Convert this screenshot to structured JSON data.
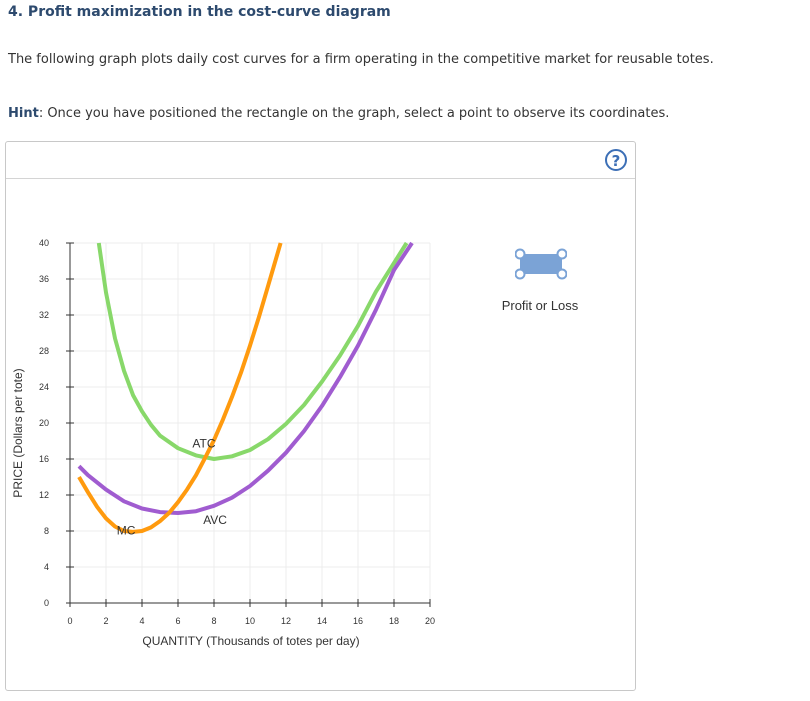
{
  "question": {
    "title": "4. Profit maximization in the cost-curve diagram",
    "description": "The following graph plots daily cost curves for a firm operating in the competitive market for reusable totes.",
    "hint_label": "Hint",
    "hint_text": ": Once you have positioned the rectangle on the graph, select a point to observe its coordinates."
  },
  "panel": {
    "help_label": "?"
  },
  "tool": {
    "label": "Profit or Loss",
    "color": "#7ba3d6"
  },
  "chart_data": {
    "type": "line",
    "xlabel": "QUANTITY (Thousands of totes per day)",
    "ylabel": "PRICE (Dollars per tote)",
    "xlim": [
      0,
      20
    ],
    "ylim": [
      0,
      40
    ],
    "xticks": [
      0,
      2,
      4,
      6,
      8,
      10,
      12,
      14,
      16,
      18,
      20
    ],
    "yticks": [
      0,
      4,
      8,
      12,
      16,
      20,
      24,
      28,
      32,
      36,
      40
    ],
    "grid": true,
    "series": [
      {
        "name": "ATC",
        "color": "#88d86a",
        "points": [
          [
            1.6,
            40
          ],
          [
            2,
            34.5
          ],
          [
            2.5,
            29.4
          ],
          [
            3,
            25.8
          ],
          [
            3.5,
            23.1
          ],
          [
            4,
            21.3
          ],
          [
            4.5,
            19.8
          ],
          [
            5,
            18.6
          ],
          [
            6,
            17.2
          ],
          [
            7,
            16.4
          ],
          [
            8,
            16.0
          ],
          [
            9,
            16.3
          ],
          [
            10,
            17.0
          ],
          [
            11,
            18.2
          ],
          [
            12,
            19.9
          ],
          [
            13,
            22.0
          ],
          [
            14,
            24.6
          ],
          [
            15,
            27.5
          ],
          [
            16,
            30.8
          ],
          [
            17,
            34.6
          ],
          [
            18.7,
            40
          ]
        ]
      },
      {
        "name": "AVC",
        "color": "#a05cd0",
        "points": [
          [
            0.5,
            15.2
          ],
          [
            1,
            14.2
          ],
          [
            2,
            12.6
          ],
          [
            3,
            11.3
          ],
          [
            4,
            10.5
          ],
          [
            5,
            10.1
          ],
          [
            6,
            10.0
          ],
          [
            7,
            10.2
          ],
          [
            8,
            10.8
          ],
          [
            9,
            11.7
          ],
          [
            10,
            13.0
          ],
          [
            11,
            14.7
          ],
          [
            12,
            16.7
          ],
          [
            13,
            19.1
          ],
          [
            14,
            21.9
          ],
          [
            15,
            25.1
          ],
          [
            16,
            28.6
          ],
          [
            17,
            32.6
          ],
          [
            18,
            37.0
          ],
          [
            19,
            40
          ]
        ]
      },
      {
        "name": "MC",
        "color": "#ff9a0e",
        "points": [
          [
            0.5,
            14.0
          ],
          [
            1,
            12.3
          ],
          [
            1.5,
            10.7
          ],
          [
            2,
            9.4
          ],
          [
            2.5,
            8.5
          ],
          [
            3,
            8.0
          ],
          [
            3.5,
            7.9
          ],
          [
            4,
            8.0
          ],
          [
            4.5,
            8.4
          ],
          [
            5,
            9.1
          ],
          [
            5.5,
            10.0
          ],
          [
            6,
            11.2
          ],
          [
            6.5,
            12.6
          ],
          [
            7,
            14.2
          ],
          [
            7.5,
            16.1
          ],
          [
            8,
            18.1
          ],
          [
            8.5,
            20.4
          ],
          [
            9,
            22.9
          ],
          [
            9.5,
            25.6
          ],
          [
            10,
            28.6
          ],
          [
            10.5,
            31.8
          ],
          [
            11,
            35.2
          ],
          [
            11.7,
            40
          ]
        ]
      }
    ],
    "annotations": [
      {
        "text": "ATC",
        "x": 6.8,
        "y": 17.3
      },
      {
        "text": "AVC",
        "x": 7.4,
        "y": 8.8
      },
      {
        "text": "MC",
        "x": 2.6,
        "y": 7.6
      }
    ]
  }
}
